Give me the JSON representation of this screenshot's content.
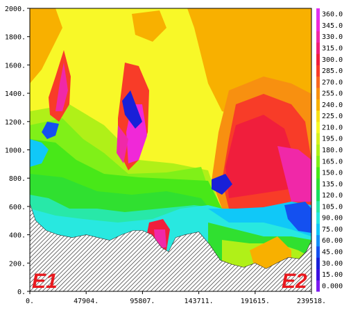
{
  "chart_data": {
    "type": "heatmap",
    "title": "",
    "xlabel": "",
    "ylabel": "",
    "x_ticks": [
      "0.",
      "47904.",
      "95807.",
      "143711.",
      "191615.",
      "239518."
    ],
    "y_ticks": [
      "0.",
      "200.",
      "400.",
      "600.",
      "800.",
      "1000.",
      "1200.",
      "1400.",
      "1600.",
      "1800.",
      "2000."
    ],
    "xlim": [
      0,
      239518
    ],
    "ylim": [
      0,
      2000
    ],
    "colorbar": {
      "levels": [
        "0.000",
        "15.00",
        "30.00",
        "45.00",
        "60.00",
        "75.00",
        "90.00",
        "105.0",
        "120.0",
        "135.0",
        "150.0",
        "165.0",
        "180.0",
        "195.0",
        "210.0",
        "225.0",
        "240.0",
        "255.0",
        "270.0",
        "285.0",
        "300.0",
        "315.0",
        "330.0",
        "345.0",
        "360.0"
      ],
      "colors": [
        "#7c1cf0",
        "#3c10e0",
        "#1820d8",
        "#1450f0",
        "#1490f8",
        "#10c8f8",
        "#28e8e0",
        "#28e8a8",
        "#18e060",
        "#30e030",
        "#48e818",
        "#80f018",
        "#b0f018",
        "#d8f020",
        "#f8f828",
        "#f8e018",
        "#f8b000",
        "#f89010",
        "#f86820",
        "#f83c28",
        "#f01e3c",
        "#f01e78",
        "#f028a8",
        "#f028d8",
        "#e030f0"
      ]
    },
    "terrain_profile": [
      [
        0,
        620
      ],
      [
        5000,
        500
      ],
      [
        14000,
        430
      ],
      [
        24000,
        400
      ],
      [
        36000,
        380
      ],
      [
        48000,
        400
      ],
      [
        58000,
        380
      ],
      [
        68000,
        360
      ],
      [
        78000,
        400
      ],
      [
        88000,
        430
      ],
      [
        95800,
        430
      ],
      [
        104000,
        400
      ],
      [
        112000,
        310
      ],
      [
        118000,
        280
      ],
      [
        124000,
        380
      ],
      [
        132000,
        400
      ],
      [
        143711,
        420
      ],
      [
        153000,
        330
      ],
      [
        162000,
        220
      ],
      [
        172000,
        190
      ],
      [
        182000,
        170
      ],
      [
        191615,
        200
      ],
      [
        201000,
        160
      ],
      [
        210000,
        200
      ],
      [
        220000,
        240
      ],
      [
        229000,
        230
      ],
      [
        235000,
        280
      ],
      [
        239518,
        360
      ]
    ],
    "annotations": [
      "E1",
      "E2"
    ]
  }
}
